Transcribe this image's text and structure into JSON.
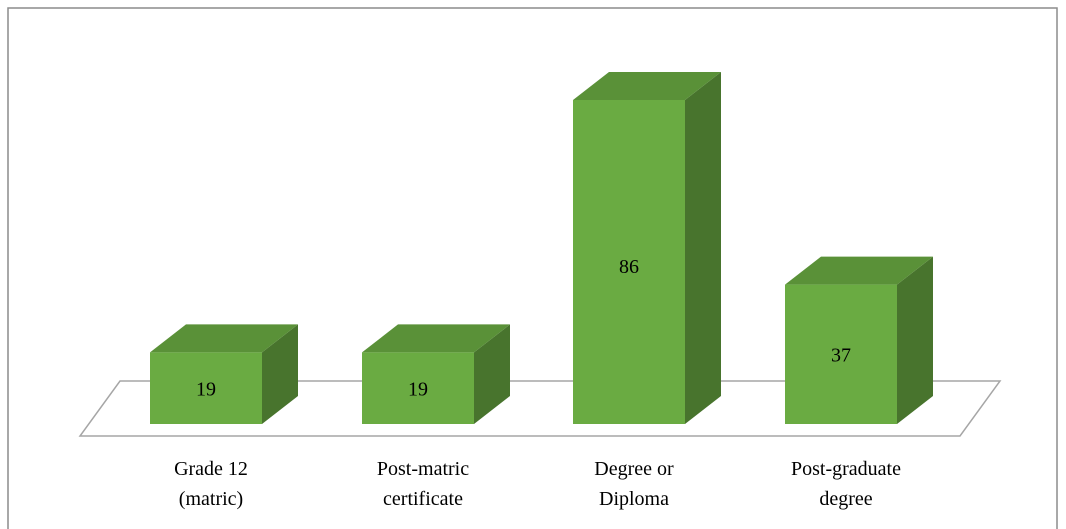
{
  "chart_data": {
    "type": "bar3d",
    "categories": [
      "Grade 12\n(matric)",
      "Post-matric\ncertificate",
      "Degree or\nDiploma",
      "Post-graduate\ndegree"
    ],
    "values": [
      19,
      19,
      86,
      37
    ],
    "color": "#6aab42"
  }
}
